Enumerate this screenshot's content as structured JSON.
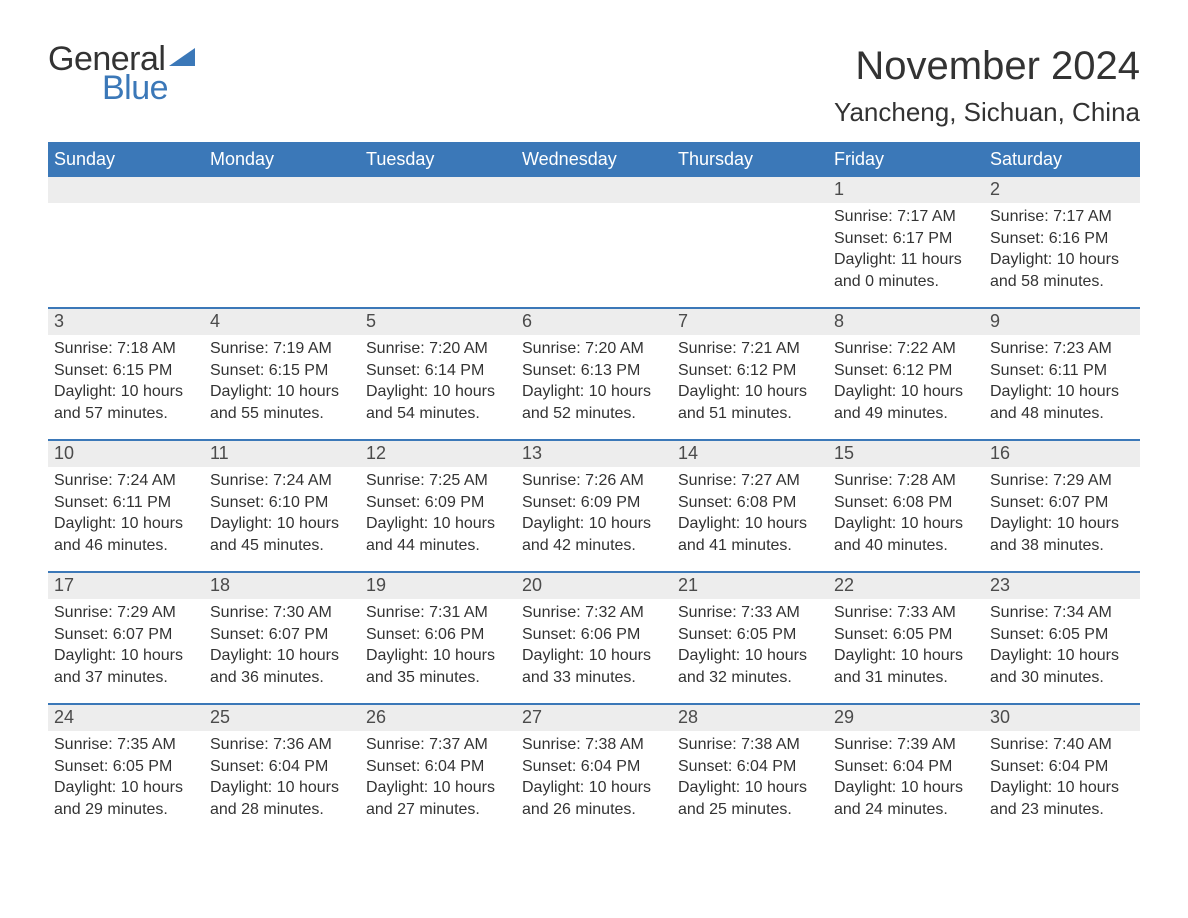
{
  "logo": {
    "general": "General",
    "blue": "Blue"
  },
  "title": "November 2024",
  "location": "Yancheng, Sichuan, China",
  "colors": {
    "header_bg": "#3b78b8",
    "header_text": "#ffffff",
    "daynum_bg": "#ededed",
    "border": "#3b78b8",
    "text": "#333333",
    "page_bg": "#ffffff"
  },
  "daysOfWeek": [
    "Sunday",
    "Monday",
    "Tuesday",
    "Wednesday",
    "Thursday",
    "Friday",
    "Saturday"
  ],
  "weeks": [
    [
      null,
      null,
      null,
      null,
      null,
      {
        "n": "1",
        "sr": "Sunrise: 7:17 AM",
        "ss": "Sunset: 6:17 PM",
        "d1": "Daylight: 11 hours",
        "d2": "and 0 minutes."
      },
      {
        "n": "2",
        "sr": "Sunrise: 7:17 AM",
        "ss": "Sunset: 6:16 PM",
        "d1": "Daylight: 10 hours",
        "d2": "and 58 minutes."
      }
    ],
    [
      {
        "n": "3",
        "sr": "Sunrise: 7:18 AM",
        "ss": "Sunset: 6:15 PM",
        "d1": "Daylight: 10 hours",
        "d2": "and 57 minutes."
      },
      {
        "n": "4",
        "sr": "Sunrise: 7:19 AM",
        "ss": "Sunset: 6:15 PM",
        "d1": "Daylight: 10 hours",
        "d2": "and 55 minutes."
      },
      {
        "n": "5",
        "sr": "Sunrise: 7:20 AM",
        "ss": "Sunset: 6:14 PM",
        "d1": "Daylight: 10 hours",
        "d2": "and 54 minutes."
      },
      {
        "n": "6",
        "sr": "Sunrise: 7:20 AM",
        "ss": "Sunset: 6:13 PM",
        "d1": "Daylight: 10 hours",
        "d2": "and 52 minutes."
      },
      {
        "n": "7",
        "sr": "Sunrise: 7:21 AM",
        "ss": "Sunset: 6:12 PM",
        "d1": "Daylight: 10 hours",
        "d2": "and 51 minutes."
      },
      {
        "n": "8",
        "sr": "Sunrise: 7:22 AM",
        "ss": "Sunset: 6:12 PM",
        "d1": "Daylight: 10 hours",
        "d2": "and 49 minutes."
      },
      {
        "n": "9",
        "sr": "Sunrise: 7:23 AM",
        "ss": "Sunset: 6:11 PM",
        "d1": "Daylight: 10 hours",
        "d2": "and 48 minutes."
      }
    ],
    [
      {
        "n": "10",
        "sr": "Sunrise: 7:24 AM",
        "ss": "Sunset: 6:11 PM",
        "d1": "Daylight: 10 hours",
        "d2": "and 46 minutes."
      },
      {
        "n": "11",
        "sr": "Sunrise: 7:24 AM",
        "ss": "Sunset: 6:10 PM",
        "d1": "Daylight: 10 hours",
        "d2": "and 45 minutes."
      },
      {
        "n": "12",
        "sr": "Sunrise: 7:25 AM",
        "ss": "Sunset: 6:09 PM",
        "d1": "Daylight: 10 hours",
        "d2": "and 44 minutes."
      },
      {
        "n": "13",
        "sr": "Sunrise: 7:26 AM",
        "ss": "Sunset: 6:09 PM",
        "d1": "Daylight: 10 hours",
        "d2": "and 42 minutes."
      },
      {
        "n": "14",
        "sr": "Sunrise: 7:27 AM",
        "ss": "Sunset: 6:08 PM",
        "d1": "Daylight: 10 hours",
        "d2": "and 41 minutes."
      },
      {
        "n": "15",
        "sr": "Sunrise: 7:28 AM",
        "ss": "Sunset: 6:08 PM",
        "d1": "Daylight: 10 hours",
        "d2": "and 40 minutes."
      },
      {
        "n": "16",
        "sr": "Sunrise: 7:29 AM",
        "ss": "Sunset: 6:07 PM",
        "d1": "Daylight: 10 hours",
        "d2": "and 38 minutes."
      }
    ],
    [
      {
        "n": "17",
        "sr": "Sunrise: 7:29 AM",
        "ss": "Sunset: 6:07 PM",
        "d1": "Daylight: 10 hours",
        "d2": "and 37 minutes."
      },
      {
        "n": "18",
        "sr": "Sunrise: 7:30 AM",
        "ss": "Sunset: 6:07 PM",
        "d1": "Daylight: 10 hours",
        "d2": "and 36 minutes."
      },
      {
        "n": "19",
        "sr": "Sunrise: 7:31 AM",
        "ss": "Sunset: 6:06 PM",
        "d1": "Daylight: 10 hours",
        "d2": "and 35 minutes."
      },
      {
        "n": "20",
        "sr": "Sunrise: 7:32 AM",
        "ss": "Sunset: 6:06 PM",
        "d1": "Daylight: 10 hours",
        "d2": "and 33 minutes."
      },
      {
        "n": "21",
        "sr": "Sunrise: 7:33 AM",
        "ss": "Sunset: 6:05 PM",
        "d1": "Daylight: 10 hours",
        "d2": "and 32 minutes."
      },
      {
        "n": "22",
        "sr": "Sunrise: 7:33 AM",
        "ss": "Sunset: 6:05 PM",
        "d1": "Daylight: 10 hours",
        "d2": "and 31 minutes."
      },
      {
        "n": "23",
        "sr": "Sunrise: 7:34 AM",
        "ss": "Sunset: 6:05 PM",
        "d1": "Daylight: 10 hours",
        "d2": "and 30 minutes."
      }
    ],
    [
      {
        "n": "24",
        "sr": "Sunrise: 7:35 AM",
        "ss": "Sunset: 6:05 PM",
        "d1": "Daylight: 10 hours",
        "d2": "and 29 minutes."
      },
      {
        "n": "25",
        "sr": "Sunrise: 7:36 AM",
        "ss": "Sunset: 6:04 PM",
        "d1": "Daylight: 10 hours",
        "d2": "and 28 minutes."
      },
      {
        "n": "26",
        "sr": "Sunrise: 7:37 AM",
        "ss": "Sunset: 6:04 PM",
        "d1": "Daylight: 10 hours",
        "d2": "and 27 minutes."
      },
      {
        "n": "27",
        "sr": "Sunrise: 7:38 AM",
        "ss": "Sunset: 6:04 PM",
        "d1": "Daylight: 10 hours",
        "d2": "and 26 minutes."
      },
      {
        "n": "28",
        "sr": "Sunrise: 7:38 AM",
        "ss": "Sunset: 6:04 PM",
        "d1": "Daylight: 10 hours",
        "d2": "and 25 minutes."
      },
      {
        "n": "29",
        "sr": "Sunrise: 7:39 AM",
        "ss": "Sunset: 6:04 PM",
        "d1": "Daylight: 10 hours",
        "d2": "and 24 minutes."
      },
      {
        "n": "30",
        "sr": "Sunrise: 7:40 AM",
        "ss": "Sunset: 6:04 PM",
        "d1": "Daylight: 10 hours",
        "d2": "and 23 minutes."
      }
    ]
  ]
}
